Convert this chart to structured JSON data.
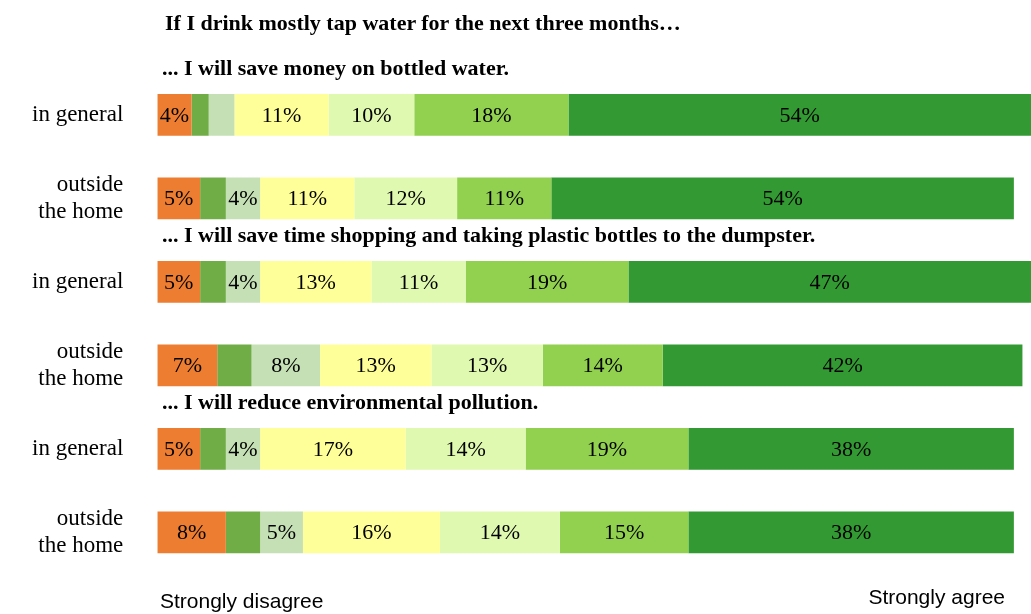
{
  "chart_data": {
    "type": "bar",
    "orientation": "horizontal",
    "stacked": true,
    "title": "If I drink mostly tap water for the next three months…",
    "categories": [
      "in general",
      "outside the home",
      "in general",
      "outside the home",
      "in general",
      "outside the home"
    ],
    "series": [
      {
        "color": "#ed7d31",
        "values": [
          4,
          5,
          5,
          7,
          5,
          8
        ],
        "value_labels": [
          "4%",
          "5%",
          "5%",
          "7%",
          "5%",
          "8%"
        ]
      },
      {
        "color": "#70ad47",
        "values": [
          2,
          3,
          3,
          4,
          3,
          4
        ],
        "value_labels": [
          null,
          null,
          null,
          null,
          null,
          null
        ]
      },
      {
        "color": "#c5e0b4",
        "values": [
          3,
          4,
          4,
          8,
          4,
          5
        ],
        "value_labels": [
          null,
          "4%",
          "4%",
          "8%",
          "4%",
          "5%"
        ]
      },
      {
        "color": "#ffff99",
        "values": [
          11,
          11,
          13,
          13,
          17,
          16
        ],
        "value_labels": [
          "11%",
          "11%",
          "13%",
          "13%",
          "17%",
          "16%"
        ]
      },
      {
        "color": "#dff9b0",
        "values": [
          10,
          12,
          11,
          13,
          14,
          14
        ],
        "value_labels": [
          "10%",
          "12%",
          "11%",
          "13%",
          "14%",
          "14%"
        ]
      },
      {
        "color": "#92d050",
        "values": [
          18,
          11,
          19,
          14,
          19,
          15
        ],
        "value_labels": [
          "18%",
          "11%",
          "19%",
          "14%",
          "19%",
          "15%"
        ]
      },
      {
        "color": "#339933",
        "values": [
          54,
          54,
          47,
          42,
          38,
          38
        ],
        "value_labels": [
          "54%",
          "54%",
          "47%",
          "42%",
          "38%",
          "38%"
        ]
      }
    ],
    "xlim": [
      0,
      102
    ],
    "tick_labels": "y",
    "legend": false,
    "annotations": [
      "... I will save money on bottled water.",
      "... I will save time shopping and taking plastic bottles to the dumpster.",
      "... I will reduce environmental pollution.",
      "Strongly disagree",
      "Strongly agree"
    ]
  }
}
